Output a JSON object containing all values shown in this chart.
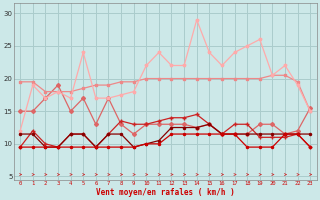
{
  "x": [
    0,
    1,
    2,
    3,
    4,
    5,
    6,
    7,
    8,
    9,
    10,
    11,
    12,
    13,
    14,
    15,
    16,
    17,
    18,
    19,
    20,
    21,
    22,
    23
  ],
  "line_rafales": [
    12,
    19,
    17,
    18,
    17,
    24,
    17,
    17,
    17.5,
    18,
    22,
    24,
    22,
    22,
    29,
    24,
    22,
    24,
    25,
    26,
    20.5,
    22,
    19,
    15
  ],
  "line_smooth_high": [
    19.5,
    19.5,
    18,
    18,
    18,
    18.5,
    19,
    19,
    19.5,
    19.5,
    20,
    20,
    20,
    20,
    20,
    20,
    20,
    20,
    20,
    20,
    20.5,
    20.5,
    19.5,
    15
  ],
  "line_moyen_zigzag": [
    15,
    15,
    17,
    19,
    15,
    17,
    13,
    17,
    13,
    11.5,
    13,
    13,
    13,
    13,
    12.5,
    13,
    11.5,
    11.5,
    11.5,
    13,
    13,
    11.5,
    12,
    15.5
  ],
  "line_medium": [
    9.5,
    12,
    10,
    9.5,
    11.5,
    11.5,
    9.5,
    11.5,
    13.5,
    13,
    13,
    13.5,
    14,
    14,
    14.5,
    13,
    11.5,
    13,
    13,
    11,
    11,
    11,
    11.5,
    9.5
  ],
  "line_dark1": [
    11.5,
    11.5,
    9.5,
    9.5,
    11.5,
    11.5,
    9.5,
    11.5,
    11.5,
    9.5,
    10,
    10.5,
    12.5,
    12.5,
    12.5,
    13,
    11.5,
    11.5,
    11.5,
    11.5,
    11.5,
    11.5,
    11.5,
    11.5
  ],
  "line_dark2": [
    9.5,
    9.5,
    9.5,
    9.5,
    9.5,
    9.5,
    9.5,
    9.5,
    9.5,
    9.5,
    10,
    10,
    11.5,
    11.5,
    11.5,
    11.5,
    11.5,
    11.5,
    9.5,
    9.5,
    9.5,
    11.5,
    11.5,
    9.5
  ],
  "bg_color": "#cce8e8",
  "grid_color": "#aacccc",
  "col_rafales": "#ffaaaa",
  "col_smooth_high": "#ee8888",
  "col_moyen_zigzag": "#dd6666",
  "col_medium": "#cc2222",
  "col_dark1": "#880000",
  "col_dark2": "#cc0000",
  "arrow_color": "#cc3333",
  "xlabel": "Vent moyen/en rafales ( km/h )",
  "yticks": [
    5,
    10,
    15,
    20,
    25,
    30
  ],
  "xlim": [
    -0.5,
    23.5
  ],
  "ylim": [
    4.5,
    31.5
  ]
}
